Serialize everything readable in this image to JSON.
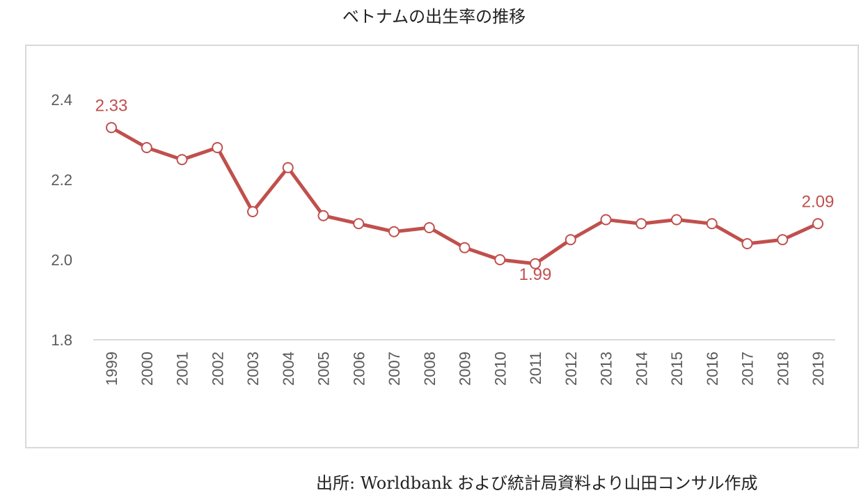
{
  "title": "ベトナムの出生率の推移",
  "source": "出所: Worldbank および統計局資料より山田コンサル作成",
  "colors": {
    "line": "#c0504d",
    "marker_fill": "#ffffff",
    "axis": "#d9d9d9",
    "tick_text": "#595959",
    "frame": "#d9d9d9"
  },
  "chart_data": {
    "type": "line",
    "title": "ベトナムの出生率の推移",
    "categories": [
      "1999",
      "2000",
      "2001",
      "2002",
      "2003",
      "2004",
      "2005",
      "2006",
      "2007",
      "2008",
      "2009",
      "2010",
      "2011",
      "2012",
      "2013",
      "2014",
      "2015",
      "2016",
      "2017",
      "2018",
      "2019"
    ],
    "series": [
      {
        "values": [
          2.33,
          2.28,
          2.25,
          2.28,
          2.12,
          2.23,
          2.11,
          2.09,
          2.07,
          2.08,
          2.03,
          2.0,
          1.99,
          2.05,
          2.1,
          2.09,
          2.1,
          2.09,
          2.04,
          2.05,
          2.09
        ]
      }
    ],
    "yticks": [
      "1.8",
      "2.0",
      "2.2",
      "2.4"
    ],
    "ylim": [
      1.8,
      2.4
    ],
    "grid": false,
    "legend": "none",
    "data_labels": [
      {
        "category": "1999",
        "text": "2.33",
        "pos": "above"
      },
      {
        "category": "2011",
        "text": "1.99",
        "pos": "below"
      },
      {
        "category": "2019",
        "text": "2.09",
        "pos": "above"
      }
    ]
  }
}
